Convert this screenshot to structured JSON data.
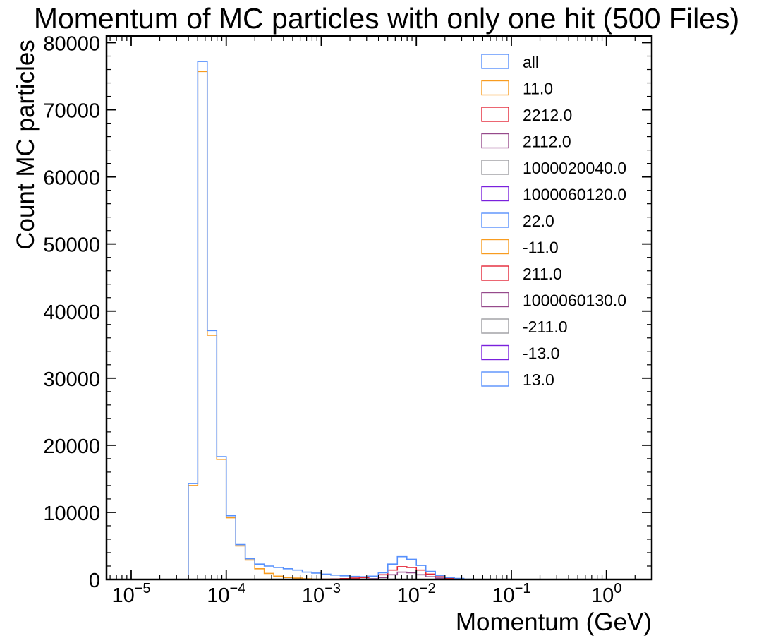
{
  "chart_data": {
    "type": "step-histogram",
    "title": "Momentum of MC particles with only one hit (500 Files)",
    "xlabel": "Momentum (GeV)",
    "ylabel": "Count MC particles",
    "xscale": "log",
    "xlim": [
      5.5e-06,
      3.0
    ],
    "ylim": [
      0,
      81000
    ],
    "grid": false,
    "legend_position": "top-right",
    "x_ticks": [
      {
        "value": 1e-05,
        "base": "10",
        "exp": "−5"
      },
      {
        "value": 0.0001,
        "base": "10",
        "exp": "−4"
      },
      {
        "value": 0.001,
        "base": "10",
        "exp": "−3"
      },
      {
        "value": 0.01,
        "base": "10",
        "exp": "−2"
      },
      {
        "value": 0.1,
        "base": "10",
        "exp": "−1"
      },
      {
        "value": 1,
        "base": "10",
        "exp": "0"
      }
    ],
    "y_ticks": [
      {
        "value": 0,
        "label": "0"
      },
      {
        "value": 10000,
        "label": "10000"
      },
      {
        "value": 20000,
        "label": "20000"
      },
      {
        "value": 30000,
        "label": "30000"
      },
      {
        "value": 40000,
        "label": "40000"
      },
      {
        "value": 50000,
        "label": "50000"
      },
      {
        "value": 60000,
        "label": "60000"
      },
      {
        "value": 70000,
        "label": "70000"
      },
      {
        "value": 80000,
        "label": "80000"
      }
    ],
    "log_bin_edges_start": -5.0,
    "log_bin_width": 0.1,
    "series": [
      {
        "name": "all",
        "color": "#5790fc",
        "values": [
          0,
          0,
          0,
          0,
          0,
          0,
          14300,
          77200,
          37100,
          18300,
          9500,
          5200,
          3100,
          2300,
          2000,
          1800,
          1600,
          1400,
          1100,
          950,
          800,
          650,
          550,
          450,
          400,
          500,
          1000,
          2300,
          3400,
          3000,
          2100,
          1200,
          600,
          300,
          150,
          50,
          0,
          0,
          0,
          0,
          0,
          0,
          0,
          0,
          0,
          0,
          0,
          0,
          0,
          0,
          0,
          0,
          0,
          0
        ]
      },
      {
        "name": "11.0",
        "color": "#f89c20",
        "values": [
          0,
          0,
          0,
          0,
          0,
          0,
          14000,
          75700,
          36400,
          17900,
          9200,
          5000,
          2900,
          1600,
          900,
          500,
          300,
          200,
          100,
          50,
          30,
          20,
          10,
          0,
          0,
          0,
          0,
          0,
          0,
          0,
          0,
          0,
          0,
          0,
          0,
          0,
          0,
          0,
          0,
          0,
          0,
          0,
          0,
          0,
          0,
          0,
          0,
          0,
          0,
          0,
          0,
          0,
          0,
          0
        ]
      },
      {
        "name": "2212.0",
        "color": "#e42536",
        "values": [
          0,
          0,
          0,
          0,
          0,
          0,
          0,
          0,
          0,
          0,
          0,
          0,
          0,
          0,
          0,
          0,
          0,
          0,
          0,
          0,
          50,
          80,
          120,
          200,
          300,
          400,
          700,
          1400,
          1900,
          1800,
          1400,
          800,
          400,
          150,
          50,
          0,
          0,
          0,
          0,
          0,
          0,
          0,
          0,
          0,
          0,
          0,
          0,
          0,
          0,
          0,
          0,
          0,
          0,
          0
        ]
      },
      {
        "name": "2112.0",
        "color": "#964a8b",
        "values": [
          0,
          0,
          0,
          0,
          0,
          0,
          0,
          0,
          0,
          0,
          0,
          0,
          0,
          0,
          0,
          0,
          0,
          0,
          0,
          0,
          0,
          0,
          0,
          0,
          50,
          100,
          300,
          700,
          1100,
          1000,
          700,
          400,
          200,
          100,
          50,
          0,
          0,
          0,
          0,
          0,
          0,
          0,
          0,
          0,
          0,
          0,
          0,
          0,
          0,
          0,
          0,
          0,
          0,
          0
        ]
      },
      {
        "name": "1000020040.0",
        "color": "#9c9ca1",
        "values": []
      },
      {
        "name": "1000060120.0",
        "color": "#7a21dd",
        "values": []
      },
      {
        "name": "22.0",
        "color": "#5790fc",
        "values": []
      },
      {
        "name": "-11.0",
        "color": "#f89c20",
        "values": []
      },
      {
        "name": "211.0",
        "color": "#e42536",
        "values": []
      },
      {
        "name": "1000060130.0",
        "color": "#964a8b",
        "values": []
      },
      {
        "name": "-211.0",
        "color": "#9c9ca1",
        "values": []
      },
      {
        "name": "-13.0",
        "color": "#7a21dd",
        "values": []
      },
      {
        "name": "13.0",
        "color": "#5790fc",
        "values": []
      }
    ]
  }
}
